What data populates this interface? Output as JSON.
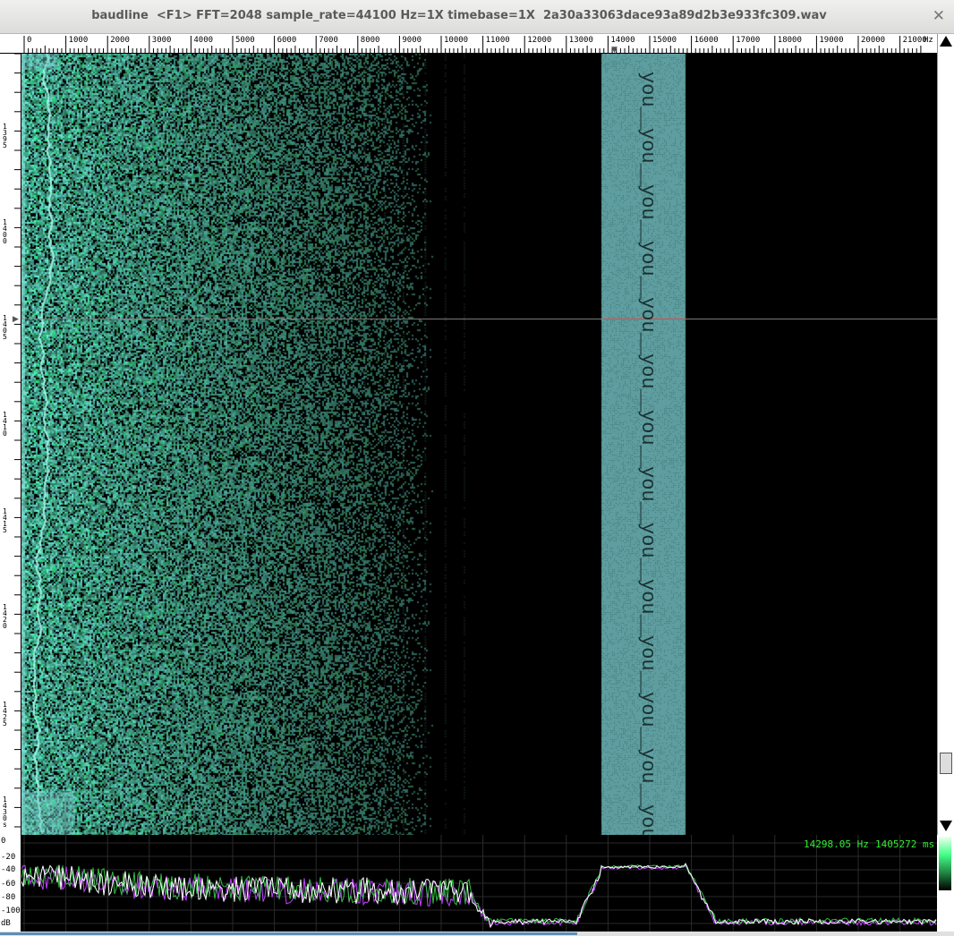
{
  "window": {
    "title": "baudline  <F1> FFT=2048 sample_rate=44100 Hz=1X timebase=1X  2a30a33063dace93a89d2b3e933fc309.wav",
    "close_glyph": "✕"
  },
  "freq_axis": {
    "labels": [
      "0",
      "1000",
      "2000",
      "3000",
      "4000",
      "5000",
      "6000",
      "7000",
      "8000",
      "9000",
      "10000",
      "11000",
      "12000",
      "13000",
      "14000",
      "15000",
      "16000",
      "17000",
      "18000",
      "19000",
      "20000",
      "21000",
      "Hz"
    ],
    "cursor_marker": "▼"
  },
  "time_axis": {
    "labels": [
      "1395",
      "1400",
      "1405",
      "1410",
      "1415",
      "1420",
      "1425",
      "1430s"
    ],
    "cursor_marker": "▶"
  },
  "spectrum": {
    "db_labels": [
      "0",
      "-20",
      "-40",
      "-60",
      "-80",
      "-100",
      "dB"
    ],
    "readout_freq": "14298.05 Hz",
    "readout_time": "1405272 ms"
  },
  "hidden_message": {
    "word": "you",
    "repeat_count": 14
  },
  "colors": {
    "trace": "#ffffff",
    "trace_alt": "#c040ff",
    "readout": "#33ee33",
    "band": "#5f9ea0",
    "spectro_light": "#a8e8e0",
    "spectro_green": "#40c080"
  }
}
